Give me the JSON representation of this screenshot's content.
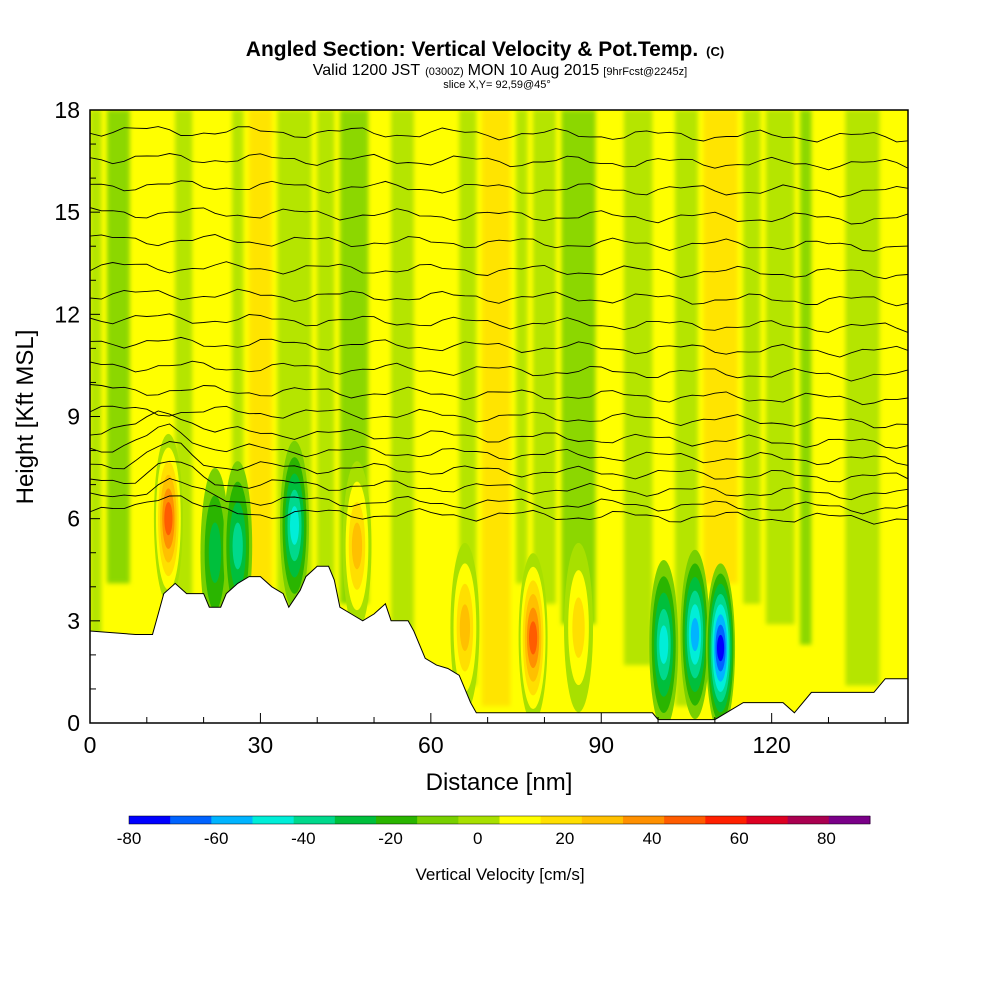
{
  "chart_data": {
    "type": "heatmap",
    "title": "Angled Section: Vertical Velocity & Pot.Temp.",
    "title_unit": "(C)",
    "subtitle_parts": [
      "Valid 1200 JST",
      "(0300Z)",
      "MON 10 Aug 2015",
      "[9hrFcst@2245z]"
    ],
    "subtitle2": "slice X,Y= 92,59@45°",
    "xlabel": "Distance [nm]",
    "ylabel": "Height [Kft MSL]",
    "xlim": [
      0,
      144
    ],
    "ylim": [
      0,
      18
    ],
    "x_ticks": [
      "0",
      "30",
      "60",
      "90",
      "120"
    ],
    "x_tick_values": [
      0,
      30,
      60,
      90,
      120
    ],
    "y_ticks": [
      "0",
      "3",
      "6",
      "9",
      "12",
      "15",
      "18"
    ],
    "y_tick_values": [
      0,
      3,
      6,
      9,
      12,
      15,
      18
    ],
    "colorbar": {
      "label": "Vertical Velocity [cm/s]",
      "range": [
        -80,
        90
      ],
      "step": 10,
      "tick_labels": [
        "-80",
        "-60",
        "-40",
        "-20",
        "0",
        "20",
        "40",
        "60",
        "80"
      ],
      "tick_values": [
        -80,
        -60,
        -40,
        -20,
        0,
        20,
        40,
        60,
        80
      ],
      "colors": [
        "#0000ff",
        "#0063ff",
        "#00b4ff",
        "#00eed8",
        "#00d98c",
        "#00bf3c",
        "#2ab500",
        "#78d000",
        "#a8e000",
        "#ffff00",
        "#ffdf00",
        "#ffc000",
        "#ff9000",
        "#ff5c00",
        "#ff2000",
        "#dd0022",
        "#aa0050",
        "#7a0088"
      ]
    },
    "terrain": [
      [
        0,
        2.7
      ],
      [
        8,
        2.6
      ],
      [
        11,
        2.6
      ],
      [
        12,
        3.2
      ],
      [
        13,
        3.8
      ],
      [
        15,
        4.1
      ],
      [
        17,
        3.8
      ],
      [
        20,
        3.8
      ],
      [
        21,
        3.4
      ],
      [
        23,
        3.4
      ],
      [
        24,
        3.8
      ],
      [
        26,
        4.1
      ],
      [
        28,
        4.3
      ],
      [
        30,
        4.3
      ],
      [
        32,
        4.0
      ],
      [
        34,
        3.8
      ],
      [
        35,
        3.4
      ],
      [
        37,
        3.9
      ],
      [
        38,
        4.3
      ],
      [
        40,
        4.6
      ],
      [
        42,
        4.6
      ],
      [
        43,
        4.2
      ],
      [
        44,
        3.4
      ],
      [
        46,
        3.2
      ],
      [
        48,
        3.0
      ],
      [
        50,
        3.2
      ],
      [
        52,
        3.5
      ],
      [
        53,
        3.0
      ],
      [
        56,
        3.0
      ],
      [
        57,
        2.7
      ],
      [
        58,
        2.3
      ],
      [
        59,
        1.9
      ],
      [
        61,
        1.7
      ],
      [
        63,
        1.6
      ],
      [
        65,
        1.4
      ],
      [
        66,
        1.0
      ],
      [
        67,
        0.6
      ],
      [
        68,
        0.3
      ],
      [
        99,
        0.3
      ],
      [
        100,
        0.1
      ],
      [
        110,
        0.1
      ],
      [
        115,
        0.6
      ],
      [
        122,
        0.6
      ],
      [
        124,
        0.3
      ],
      [
        127,
        0.9
      ],
      [
        138,
        0.9
      ],
      [
        140,
        1.3
      ],
      [
        144,
        1.3
      ]
    ],
    "cells": [
      {
        "x": 13.8,
        "y": 6.0,
        "value": 60
      },
      {
        "x": 47,
        "y": 5.2,
        "value": 40
      },
      {
        "x": 66,
        "y": 2.8,
        "value": 40
      },
      {
        "x": 78,
        "y": 2.5,
        "value": 55
      },
      {
        "x": 86,
        "y": 2.8,
        "value": 25
      },
      {
        "x": 22,
        "y": 5.0,
        "value": -25
      },
      {
        "x": 26,
        "y": 5.2,
        "value": -35
      },
      {
        "x": 36,
        "y": 5.8,
        "value": -45
      },
      {
        "x": 101,
        "y": 2.3,
        "value": -45
      },
      {
        "x": 106.5,
        "y": 2.6,
        "value": -55
      },
      {
        "x": 111,
        "y": 2.2,
        "value": -75
      }
    ],
    "theta_isentropes": [
      {
        "y0": 6.2,
        "y1": 6.0
      },
      {
        "y0": 6.6,
        "y1": 6.3
      },
      {
        "y0": 7.1,
        "y1": 6.7
      },
      {
        "y0": 7.6,
        "y1": 7.2
      },
      {
        "y0": 8.1,
        "y1": 7.7
      },
      {
        "y0": 8.6,
        "y1": 8.2
      },
      {
        "y0": 9.2,
        "y1": 8.8
      },
      {
        "y0": 9.8,
        "y1": 9.5
      },
      {
        "y0": 10.5,
        "y1": 10.2
      },
      {
        "y0": 11.2,
        "y1": 10.9
      },
      {
        "y0": 11.9,
        "y1": 11.6
      },
      {
        "y0": 12.6,
        "y1": 12.4
      },
      {
        "y0": 13.4,
        "y1": 13.2
      },
      {
        "y0": 14.2,
        "y1": 14.0
      },
      {
        "y0": 15.0,
        "y1": 14.8
      },
      {
        "y0": 15.8,
        "y1": 15.6
      },
      {
        "y0": 16.6,
        "y1": 16.4
      },
      {
        "y0": 17.4,
        "y1": 17.2
      }
    ]
  }
}
